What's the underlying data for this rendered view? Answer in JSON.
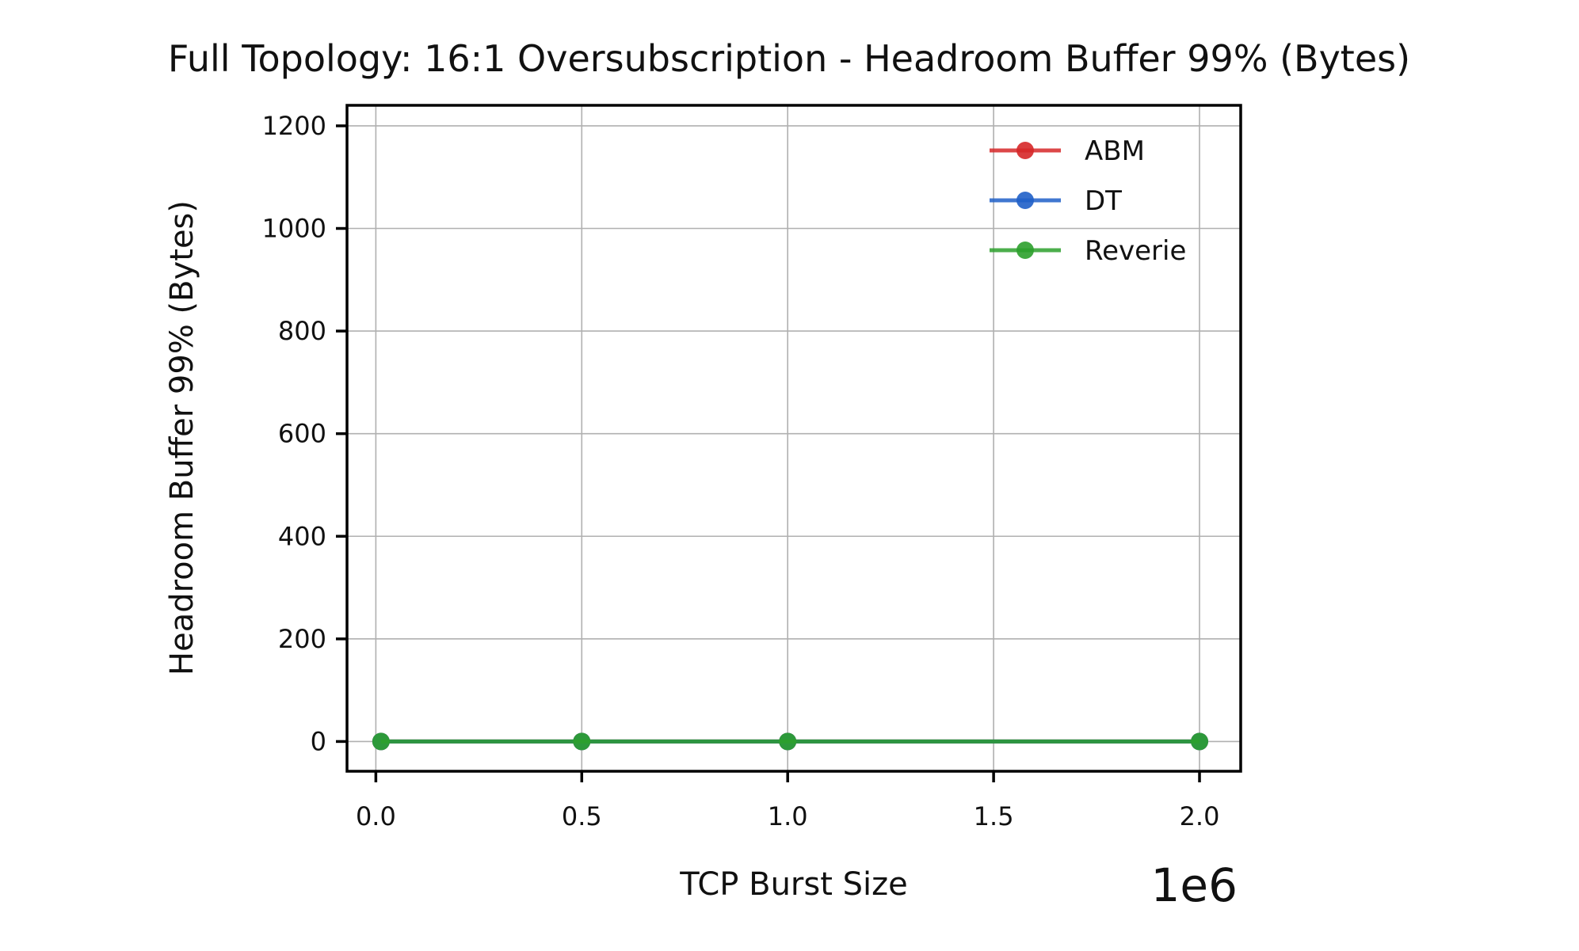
{
  "chart_data": {
    "type": "line",
    "title": "Full Topology: 16:1 Oversubscription - Headroom Buffer 99% (Bytes)",
    "xlabel": "TCP Burst Size",
    "ylabel": "Headroom Buffer 99% (Bytes)",
    "x_offset_label": "1e6",
    "xlim": [
      -70000,
      2100000
    ],
    "ylim": [
      -58,
      1240
    ],
    "x": [
      12500,
      500000,
      1000000,
      2000000
    ],
    "x_ticks": [
      0,
      500000,
      1000000,
      1500000,
      2000000
    ],
    "x_tick_labels": [
      "0.0",
      "0.5",
      "1.0",
      "1.5",
      "2.0"
    ],
    "y_ticks": [
      0,
      200,
      400,
      600,
      800,
      1000,
      1200
    ],
    "y_tick_labels": [
      "0",
      "200",
      "400",
      "600",
      "800",
      "1000",
      "1200"
    ],
    "grid": true,
    "legend_position": "top-right",
    "series": [
      {
        "name": "ABM",
        "color": "#d62728",
        "values": [
          0,
          0,
          0,
          0
        ]
      },
      {
        "name": "DT",
        "color": "#1f5fc8",
        "values": [
          0,
          0,
          0,
          0
        ]
      },
      {
        "name": "Reverie",
        "color": "#2ca02c",
        "values": [
          0,
          0,
          0,
          0
        ]
      }
    ]
  }
}
